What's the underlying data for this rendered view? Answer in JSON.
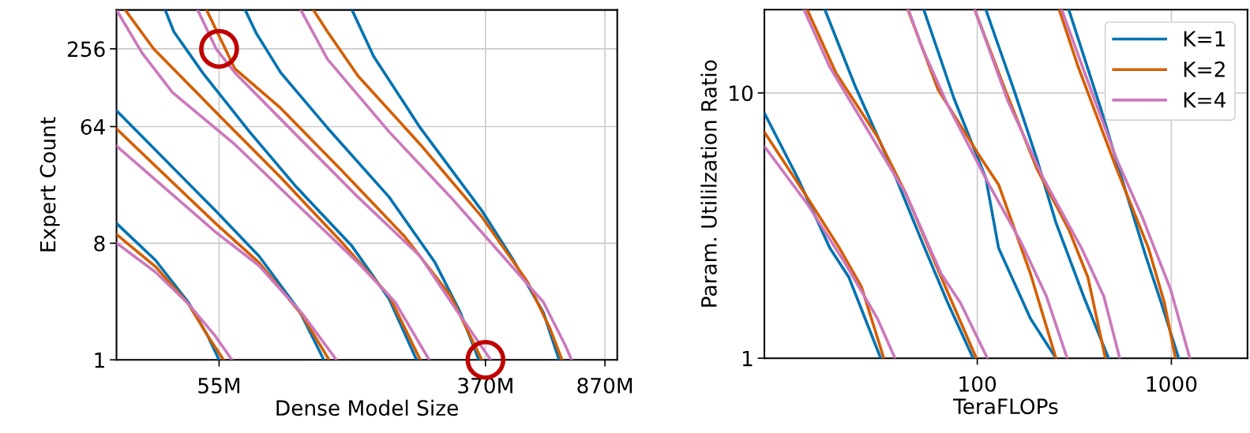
{
  "chart_data": [
    {
      "type": "line",
      "xlabel": "Dense Model Size",
      "ylabel": "Expert Count",
      "log": "xy",
      "grid": true,
      "legend": false,
      "xlim": [
        26.4,
        950
      ],
      "ylim": [
        1,
        512
      ],
      "xticks": [
        {
          "value": 55,
          "label": "55M"
        },
        {
          "value": 370,
          "label": "370M"
        },
        {
          "value": 870,
          "label": "870M"
        }
      ],
      "yticks": [
        1,
        8,
        64,
        256
      ],
      "series": [
        {
          "color": "#0173b2",
          "x": [
            26.4,
            34.9,
            44.1,
            50.6,
            55
          ],
          "values": [
            11.4,
            5.9,
            2.8,
            1.55,
            1
          ]
        },
        {
          "color": "#d55e00",
          "x": [
            26.4,
            34.9,
            44.1,
            51.1,
            56.8
          ],
          "values": [
            9.38,
            5.27,
            2.72,
            1.49,
            1
          ]
        },
        {
          "color": "#cc78bc",
          "x": [
            26.4,
            34.9,
            44.1,
            53.3,
            60.3
          ],
          "values": [
            8.03,
            4.78,
            2.72,
            1.55,
            1
          ]
        },
        {
          "color": "#0173b2",
          "x": [
            26.4,
            53.6,
            73.3,
            97.7,
            116.4
          ],
          "values": [
            85.2,
            14.3,
            6.33,
            2.4,
            1
          ]
        },
        {
          "color": "#d55e00",
          "x": [
            26.4,
            53.6,
            73.3,
            99.8,
            120.8
          ],
          "values": [
            61.6,
            11.4,
            5.65,
            2.2,
            1
          ]
        },
        {
          "color": "#cc78bc",
          "x": [
            26.4,
            53.6,
            73.3,
            99.8,
            127.4
          ],
          "values": [
            45.3,
            9.78,
            5.35,
            2.27,
            1
          ]
        },
        {
          "color": "#0173b2",
          "x": [
            37.4,
            39.8,
            49.3,
            68.4,
            95.6,
            142.4,
            185.7,
            226.0
          ],
          "values": [
            512,
            347,
            162.6,
            58.3,
            21.8,
            7.59,
            2.96,
            1
          ]
        },
        {
          "color": "#d55e00",
          "x": [
            28.1,
            34.5,
            55,
            85.5,
            132.9,
            185.7,
            232.1
          ],
          "values": [
            512,
            255,
            78.3,
            25.8,
            8.03,
            3.13,
            1
          ]
        },
        {
          "color": "#cc78bc",
          "x": [
            26.4,
            31.7,
            39.4,
            61.6,
            95.6,
            148.6,
            193.8,
            247.3
          ],
          "values": [
            512,
            237.7,
            117.7,
            46.5,
            16.2,
            5.65,
            2.8,
            1
          ]
        },
        {
          "color": "#0173b2",
          "x": [
            66.3,
            71.8,
            85.5,
            119.5,
            185.7,
            258.1,
            309.0,
            352.9
          ],
          "values": [
            512,
            337.6,
            167.3,
            62.5,
            18.2,
            5.65,
            2.33,
            1
          ]
        },
        {
          "color": "#d55e00",
          "x": [
            50.3,
            61.6,
            85.5,
            132.9,
            207.6,
            288.4,
            360.5
          ],
          "values": [
            512,
            179.5,
            88.8,
            28.9,
            8.99,
            3.13,
            1
          ]
        },
        {
          "color": "#cc78bc",
          "x": [
            47.2,
            53.9,
            61.6,
            95.6,
            148.6,
            232.1,
            309.0,
            384.2
          ],
          "values": [
            512,
            255,
            167.3,
            55.1,
            18.2,
            6.33,
            2.2,
            1
          ]
        },
        {
          "color": "#0173b2",
          "x": [
            142.4,
            166.1,
            232.1,
            360.5,
            450.5,
            559.9,
            626.5
          ],
          "values": [
            512,
            224.7,
            62.5,
            14.3,
            5.98,
            2.33,
            1
          ]
        },
        {
          "color": "#d55e00",
          "x": [
            108.0,
            119.5,
            148.6,
            232.1,
            360.5,
            501.1,
            587.4,
            639.7
          ],
          "values": [
            512,
            347,
            158.1,
            46.5,
            12.8,
            3.98,
            1.74,
            1
          ]
        },
        {
          "color": "#cc78bc",
          "x": [
            98.7,
            119.5,
            185.7,
            288.4,
            403.0,
            559.9,
            653.4,
            685.3
          ],
          "values": [
            512,
            212.5,
            58.3,
            18.2,
            7.08,
            2.8,
            1.31,
            1
          ]
        },
        {
          "type": "scatter",
          "marker": "circle",
          "color": "#c00000",
          "x": [
            55,
            370
          ],
          "values": [
            256,
            1
          ]
        }
      ]
    },
    {
      "type": "line",
      "xlabel": "TeraFLOPs",
      "ylabel": "Param. Utililzation Ratio",
      "log": "xy",
      "grid": true,
      "legend": "top right",
      "xlim": [
        8,
        2467
      ],
      "ylim": [
        1,
        20.6
      ],
      "xticks": [
        100,
        1000
      ],
      "yticks": [
        1,
        10
      ],
      "series": [
        {
          "name": "K=1",
          "color": "#0173b2",
          "x": [
            8.0,
            11.9,
            17.4,
            21.8,
            31.8
          ],
          "values": [
            8.4,
            4.77,
            2.6,
            2.02,
            1
          ]
        },
        {
          "name": "K=2",
          "color": "#d55e00",
          "x": [
            8.0,
            13.3,
            19.5,
            25.3,
            33.0
          ],
          "values": [
            7.12,
            4.04,
            2.6,
            1.86,
            1
          ]
        },
        {
          "name": "K=4",
          "color": "#cc78bc",
          "x": [
            8.0,
            13.3,
            21.0,
            30.6,
            37.7
          ],
          "values": [
            6.29,
            3.82,
            2.26,
            1.41,
            1
          ]
        },
        {
          "color": "#0173b2",
          "x": [
            16.4,
            23.5,
            37.0,
            52.0,
            70.4,
            95.2
          ],
          "values": [
            20.6,
            10.6,
            5.04,
            2.74,
            1.62,
            1
          ]
        },
        {
          "color": "#d55e00",
          "x": [
            13.3,
            18.7,
            30.6,
            43.0,
            65.2,
            98.9
          ],
          "values": [
            20.6,
            11.9,
            6.83,
            4.15,
            2.02,
            1
          ]
        },
        {
          "color": "#cc78bc",
          "x": [
            12.8,
            17.4,
            30.6,
            43.0,
            65.2,
            81.8,
            112.8
          ],
          "values": [
            20.6,
            12.5,
            6.29,
            4.15,
            2.08,
            1.62,
            1
          ]
        },
        {
          "color": "#0173b2",
          "x": [
            53.0,
            75.9,
            110.7,
            128.8,
            188.0,
            254.4
          ],
          "values": [
            20.6,
            9.52,
            4.77,
            2.6,
            1.41,
            1
          ]
        },
        {
          "color": "#d55e00",
          "x": [
            43.9,
            62.8,
            102.7,
            128.8,
            188.0,
            254.4
          ],
          "values": [
            20.6,
            10.3,
            5.79,
            4.51,
            2.08,
            1
          ]
        },
        {
          "color": "#cc78bc",
          "x": [
            44.2,
            52.0,
            70.4,
            115.0,
            167.9,
            227.2,
            290.5
          ],
          "values": [
            20.6,
            14.8,
            9.0,
            4.51,
            2.74,
            1.71,
            1
          ]
        },
        {
          "color": "#0173b2",
          "x": [
            110.7,
            155.6,
            202.8,
            254.4,
            357.6,
            474.7
          ],
          "values": [
            20.6,
            10.1,
            5.63,
            3.24,
            1.67,
            1
          ]
        },
        {
          "color": "#d55e00",
          "x": [
            97.0,
            139.0,
            202.8,
            296.0,
            371.3,
            457.1
          ],
          "values": [
            20.6,
            10.3,
            5.18,
            3.06,
            2.02,
            1
          ]
        },
        {
          "color": "#cc78bc",
          "x": [
            97.0,
            144.3,
            218.8,
            344.3,
            448.6,
            542.0
          ],
          "values": [
            20.6,
            9.26,
            4.77,
            2.6,
            1.71,
            1
          ]
        },
        {
          "color": "#0173b2",
          "x": [
            296.0,
            432.0,
            542.0,
            733.6,
            886.0,
            1091
          ],
          "values": [
            20.6,
            8.76,
            5.04,
            2.46,
            1.62,
            1
          ]
        },
        {
          "color": "#d55e00",
          "x": [
            264.2,
            331.5,
            521.9,
            761.8,
            920.1,
            1050
          ],
          "values": [
            20.6,
            12.5,
            5.18,
            2.6,
            1.62,
            1
          ]
        },
        {
          "color": "#cc78bc",
          "x": [
            272.3,
            357.6,
            521.9,
            706.3,
            992.5,
            1245
          ],
          "values": [
            20.6,
            11.9,
            5.63,
            3.42,
            1.81,
            1
          ]
        }
      ]
    }
  ]
}
